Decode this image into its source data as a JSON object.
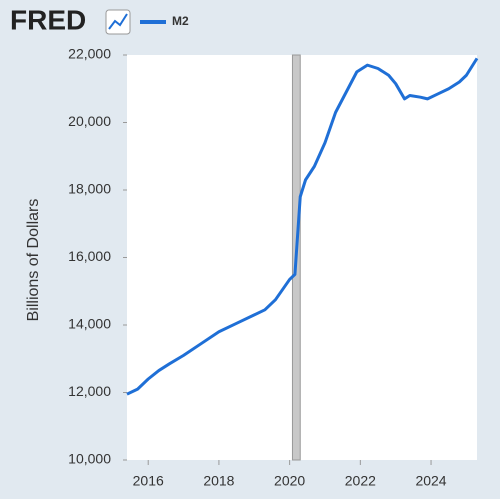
{
  "chart_data": {
    "type": "line",
    "brand": "FRED",
    "ylabel": "Billions of Dollars",
    "series": [
      {
        "name": "M2",
        "color": "#1f6fd6",
        "x": [
          2015.4,
          2015.7,
          2016.0,
          2016.3,
          2016.6,
          2017.0,
          2017.5,
          2018.0,
          2018.5,
          2019.0,
          2019.3,
          2019.6,
          2020.0,
          2020.15,
          2020.3,
          2020.45,
          2020.7,
          2021.0,
          2021.3,
          2021.6,
          2021.9,
          2022.2,
          2022.5,
          2022.8,
          2023.0,
          2023.25,
          2023.4,
          2023.7,
          2023.9,
          2024.2,
          2024.5,
          2024.8,
          2025.0,
          2025.3
        ],
        "values": [
          11950,
          12100,
          12400,
          12650,
          12850,
          13100,
          13450,
          13800,
          14050,
          14300,
          14450,
          14750,
          15350,
          15500,
          17800,
          18300,
          18700,
          19400,
          20300,
          20900,
          21500,
          21700,
          21600,
          21400,
          21150,
          20700,
          20800,
          20750,
          20700,
          20850,
          21000,
          21200,
          21400,
          21900
        ]
      }
    ],
    "recession": [
      2020.08,
      2020.3
    ],
    "xlim": [
      2015.4,
      2025.3
    ],
    "xticks": [
      2016,
      2018,
      2020,
      2022,
      2024
    ],
    "ylim": [
      10000,
      22000
    ],
    "yticks": [
      {
        "value": 10000,
        "label": "10,000"
      },
      {
        "value": 12000,
        "label": "12,000"
      },
      {
        "value": 14000,
        "label": "14,000"
      },
      {
        "value": 16000,
        "label": "16,000"
      },
      {
        "value": 18000,
        "label": "18,000"
      },
      {
        "value": 20000,
        "label": "20,000"
      },
      {
        "value": 22000,
        "label": "22,000"
      }
    ],
    "grid": false
  }
}
